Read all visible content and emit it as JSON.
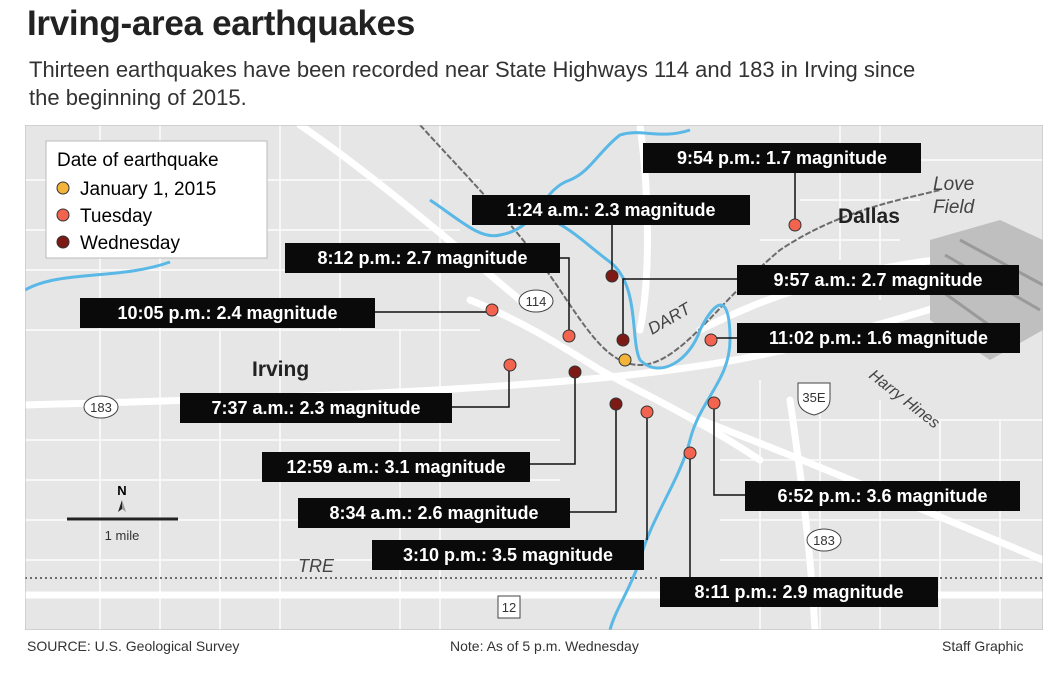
{
  "header": {
    "title": "Irving-area earthquakes",
    "subtitle": "Thirteen earthquakes have been recorded near State Highways 114 and 183 in Irving since the beginning of 2015."
  },
  "legend": {
    "title": "Date of earthquake",
    "items": [
      {
        "label": "January 1, 2015",
        "color": "#f3b43a"
      },
      {
        "label": "Tuesday",
        "color": "#f2644f"
      },
      {
        "label": "Wednesday",
        "color": "#7d1a16"
      }
    ]
  },
  "earthquakes": [
    {
      "label": "9:54 p.m.: 1.7 magnitude",
      "color": "#f2644f"
    },
    {
      "label": "1:24 a.m.: 2.3 magnitude",
      "color": "#7d1a16"
    },
    {
      "label": "8:12 p.m.: 2.7 magnitude",
      "color": "#f2644f"
    },
    {
      "label": "9:57 a.m.: 2.7 magnitude",
      "color": "#7d1a16"
    },
    {
      "label": "10:05 p.m.: 2.4 magnitude",
      "color": "#f2644f"
    },
    {
      "label": "11:02 p.m.: 1.6 magnitude",
      "color": "#f2644f"
    },
    {
      "label": null,
      "color": "#f3b43a"
    },
    {
      "label": "7:37 a.m.: 2.3 magnitude",
      "color": "#f2644f"
    },
    {
      "label": "12:59 a.m.: 3.1 magnitude",
      "color": "#7d1a16"
    },
    {
      "label": "8:34 a.m.: 2.6 magnitude",
      "color": "#7d1a16"
    },
    {
      "label": "3:10 p.m.: 3.5 magnitude",
      "color": "#f2644f"
    },
    {
      "label": "6:52 p.m.: 3.6 magnitude",
      "color": "#f2644f"
    },
    {
      "label": "8:11 p.m.: 2.9 magnitude",
      "color": "#f2644f"
    }
  ],
  "places": [
    "Dallas",
    "Love Field",
    "Irving",
    "DART",
    "Harry Hines",
    "TRE"
  ],
  "shields": [
    "114",
    "183",
    "35E",
    "183",
    "12"
  ],
  "scale": {
    "north": "N",
    "label": "1 mile"
  },
  "footer": {
    "source": "SOURCE: U.S. Geological Survey",
    "note": "Note: As of 5 p.m. Wednesday",
    "credit": "Staff Graphic"
  }
}
